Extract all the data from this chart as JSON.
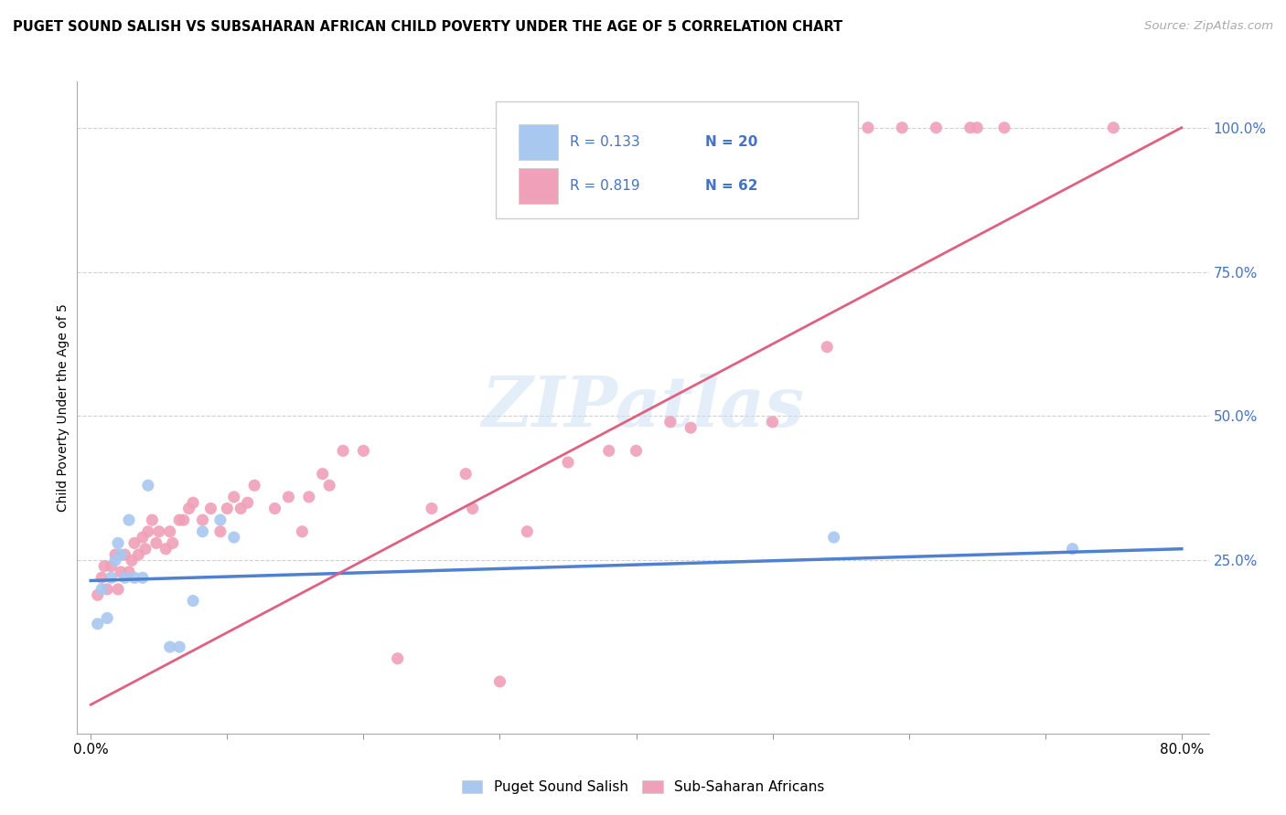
{
  "title": "PUGET SOUND SALISH VS SUBSAHARAN AFRICAN CHILD POVERTY UNDER THE AGE OF 5 CORRELATION CHART",
  "source": "Source: ZipAtlas.com",
  "ylabel": "Child Poverty Under the Age of 5",
  "watermark": "ZIPatlas",
  "xlim": [
    -0.01,
    0.82
  ],
  "ylim": [
    -0.05,
    1.08
  ],
  "xticks": [
    0.0,
    0.1,
    0.2,
    0.3,
    0.4,
    0.5,
    0.6,
    0.7,
    0.8
  ],
  "yticks_right": [
    0.25,
    0.5,
    0.75,
    1.0
  ],
  "ytick_right_labels": [
    "25.0%",
    "50.0%",
    "75.0%",
    "100.0%"
  ],
  "blue_color": "#a8c8f0",
  "pink_color": "#f0a0b8",
  "blue_line_color": "#5080d0",
  "pink_line_color": "#e06080",
  "text_blue_color": "#4472c4",
  "legend_R_blue": "R = 0.133",
  "legend_N_blue": "N = 20",
  "legend_R_pink": "R = 0.819",
  "legend_N_pink": "N = 62",
  "legend_label_blue": "Puget Sound Salish",
  "legend_label_pink": "Sub-Saharan Africans",
  "blue_scatter_x": [
    0.005,
    0.008,
    0.012,
    0.015,
    0.018,
    0.02,
    0.022,
    0.025,
    0.028,
    0.032,
    0.038,
    0.042,
    0.058,
    0.065,
    0.075,
    0.082,
    0.095,
    0.105,
    0.545,
    0.72
  ],
  "blue_scatter_y": [
    0.14,
    0.2,
    0.15,
    0.22,
    0.25,
    0.28,
    0.26,
    0.22,
    0.32,
    0.22,
    0.22,
    0.38,
    0.1,
    0.1,
    0.18,
    0.3,
    0.32,
    0.29,
    0.29,
    0.27
  ],
  "pink_scatter_x": [
    0.005,
    0.008,
    0.01,
    0.012,
    0.015,
    0.018,
    0.02,
    0.022,
    0.025,
    0.028,
    0.03,
    0.032,
    0.035,
    0.038,
    0.04,
    0.042,
    0.045,
    0.048,
    0.05,
    0.055,
    0.058,
    0.06,
    0.065,
    0.068,
    0.072,
    0.075,
    0.082,
    0.088,
    0.095,
    0.1,
    0.105,
    0.11,
    0.115,
    0.12,
    0.135,
    0.145,
    0.155,
    0.16,
    0.17,
    0.175,
    0.185,
    0.2,
    0.225,
    0.25,
    0.275,
    0.28,
    0.3,
    0.32,
    0.35,
    0.4,
    0.38,
    0.425,
    0.44,
    0.5,
    0.54,
    0.57,
    0.595,
    0.62,
    0.645,
    0.65,
    0.67,
    0.75
  ],
  "pink_scatter_y": [
    0.19,
    0.22,
    0.24,
    0.2,
    0.24,
    0.26,
    0.2,
    0.23,
    0.26,
    0.23,
    0.25,
    0.28,
    0.26,
    0.29,
    0.27,
    0.3,
    0.32,
    0.28,
    0.3,
    0.27,
    0.3,
    0.28,
    0.32,
    0.32,
    0.34,
    0.35,
    0.32,
    0.34,
    0.3,
    0.34,
    0.36,
    0.34,
    0.35,
    0.38,
    0.34,
    0.36,
    0.3,
    0.36,
    0.4,
    0.38,
    0.44,
    0.44,
    0.08,
    0.34,
    0.4,
    0.34,
    0.04,
    0.3,
    0.42,
    0.44,
    0.44,
    0.49,
    0.48,
    0.49,
    0.62,
    1.0,
    1.0,
    1.0,
    1.0,
    1.0,
    1.0,
    1.0
  ],
  "blue_trend_x": [
    0.0,
    0.8
  ],
  "blue_trend_y": [
    0.215,
    0.27
  ],
  "pink_trend_x": [
    0.0,
    0.8
  ],
  "pink_trend_y": [
    0.0,
    1.0
  ]
}
